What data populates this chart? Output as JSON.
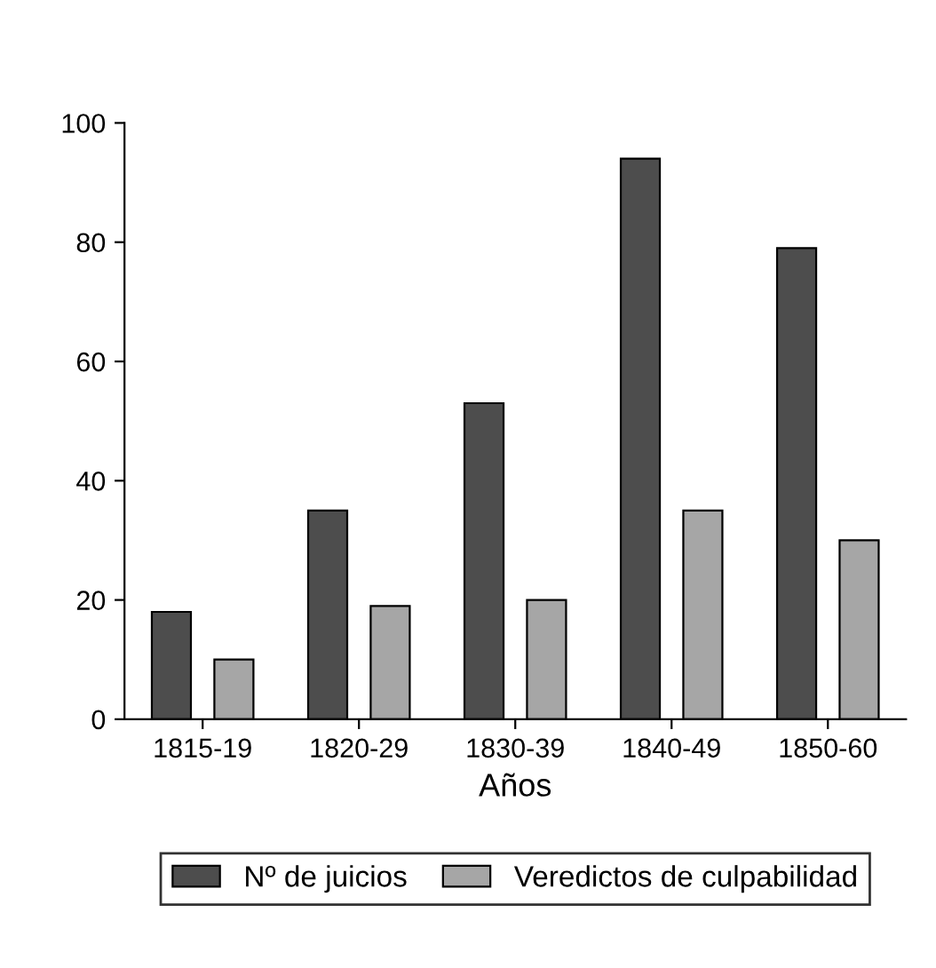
{
  "chart_data": {
    "type": "bar",
    "xlabel": "Años",
    "categories": [
      "1815-19",
      "1820-29",
      "1830-39",
      "1840-49",
      "1850-60"
    ],
    "series": [
      {
        "name": "Nº de juicios",
        "color": "#4d4d4d",
        "values": [
          18,
          35,
          53,
          94,
          79
        ]
      },
      {
        "name": "Veredictos de culpabilidad",
        "color": "#a6a6a6",
        "values": [
          10,
          19,
          20,
          35,
          30
        ]
      }
    ],
    "ylim": [
      0,
      100
    ],
    "yticks": [
      0,
      20,
      40,
      60,
      80,
      100
    ],
    "grid": false,
    "legend": "bottom"
  }
}
